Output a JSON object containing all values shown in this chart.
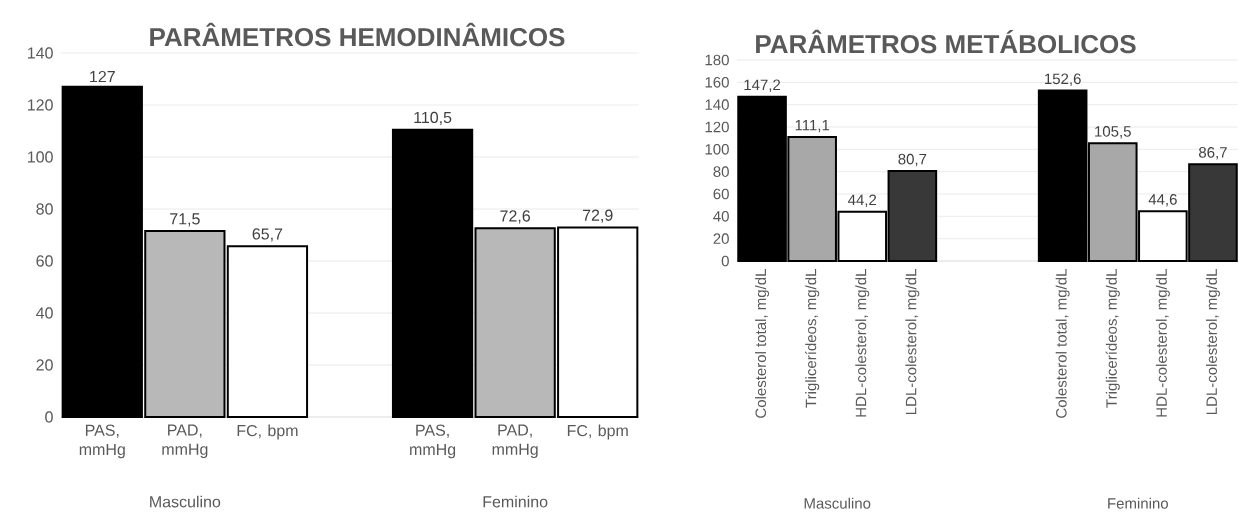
{
  "chart_data": [
    {
      "type": "bar",
      "title": "PARÂMETROS HEMODINÂMICOS",
      "categories": [
        "PAS, mmHg",
        "PAD, mmHg",
        "FC, bpm",
        null,
        "PAS, mmHg",
        "PAD, mmHg",
        "FC, bpm"
      ],
      "values": [
        127,
        71.5,
        65.7,
        null,
        110.5,
        72.6,
        72.9
      ],
      "value_labels": [
        "127",
        "71,5",
        "65,7",
        null,
        "110,5",
        "72,6",
        "72,9"
      ],
      "colors": [
        "#000000",
        "#b8b8b8",
        "#ffffff",
        null,
        "#000000",
        "#b8b8b8",
        "#ffffff"
      ],
      "ylim": [
        0,
        140
      ],
      "yticks": [
        0,
        20,
        40,
        60,
        80,
        100,
        120,
        140
      ],
      "grid": "y",
      "annotations": [
        "Masculino",
        "Feminino"
      ]
    },
    {
      "type": "bar",
      "title": "PARÂMETROS METÁBOLICOS",
      "categories": [
        "Colesterol total, mg/dL",
        "Triglicerídeos, mg/dL",
        "HDL-colesterol, mg/dL",
        "LDL-colesterol, mg/dL",
        null,
        null,
        "Colesterol total, mg/dL",
        "Triglicerídeos, mg/dL",
        "HDL-colesterol, mg/dL",
        "LDL-colesterol, mg/dL"
      ],
      "values": [
        147.2,
        111.1,
        44.2,
        80.7,
        null,
        null,
        152.6,
        105.5,
        44.6,
        86.7
      ],
      "value_labels": [
        "147,2",
        "111,1",
        "44,2",
        "80,7",
        null,
        null,
        "152,6",
        "105,5",
        "44,6",
        "86,7"
      ],
      "colors": [
        "#000000",
        "#a8a8a8",
        "#ffffff",
        "#383838",
        null,
        null,
        "#000000",
        "#a8a8a8",
        "#ffffff",
        "#383838"
      ],
      "ylim": [
        0,
        180
      ],
      "yticks": [
        0,
        20,
        40,
        60,
        80,
        100,
        120,
        140,
        160,
        180
      ],
      "grid": "y",
      "annotations": [
        "Masculino",
        "Feminino"
      ]
    }
  ]
}
